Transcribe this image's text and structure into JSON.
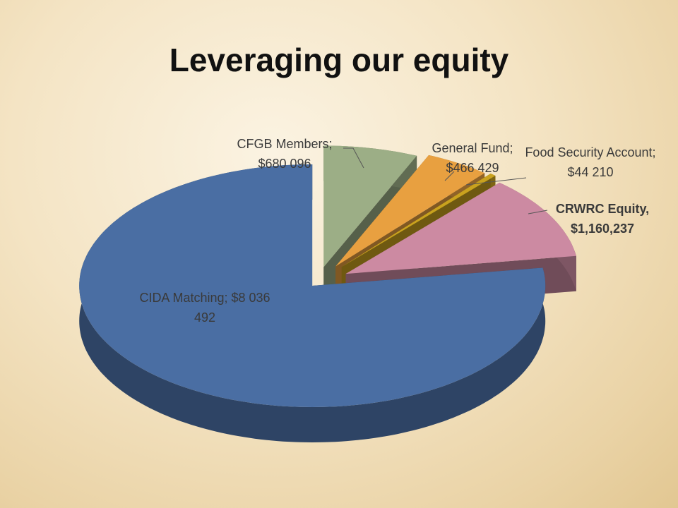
{
  "chart_data": {
    "type": "pie",
    "title": "Leveraging our equity",
    "values": [
      680096,
      466429,
      44210,
      1160237,
      8036492
    ],
    "value_labels": [
      "CFGB Members; $680 096",
      "General Fund; $466 429",
      "Food Security Account; $44 210",
      "CRWRC Equity, $1,160,237",
      "CIDA Matching; $8 036 492"
    ],
    "colors": [
      "#9cae86",
      "#e8a040",
      "#c9a21e",
      "#cc8aa2",
      "#4a6ea3"
    ]
  }
}
